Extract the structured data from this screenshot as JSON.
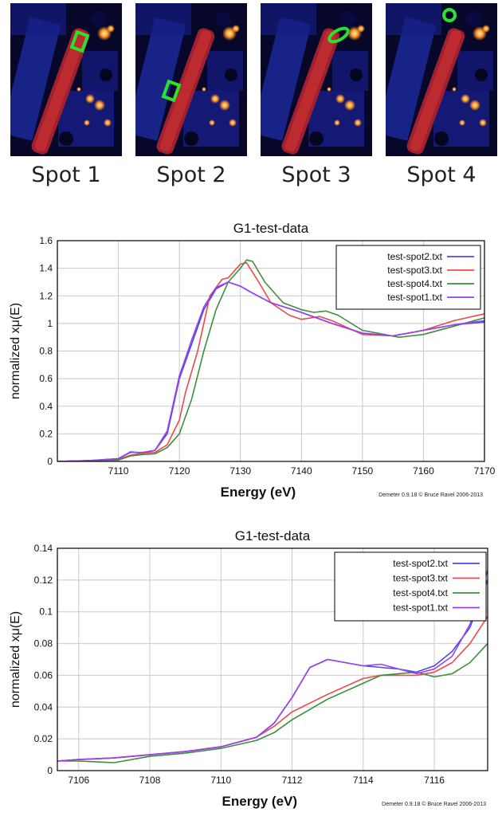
{
  "spots": [
    {
      "label": "Spot 1",
      "marker": "square"
    },
    {
      "label": "Spot 2",
      "marker": "square"
    },
    {
      "label": "Spot 3",
      "marker": "ellipse"
    },
    {
      "label": "Spot 4",
      "marker": "circle"
    }
  ],
  "colors": {
    "spot2": "#4a4af0",
    "spot3": "#f04848",
    "spot4": "#3a8f3a",
    "spot1": "#9a3ff0",
    "marker": "#2ee02e"
  },
  "chart_data": [
    {
      "type": "line",
      "title": "G1-test-data",
      "xlabel": "Energy    (eV)",
      "ylabel": "normalized xμ(E)",
      "credit": "Demeter 0.9.18 © Bruce  Ravel 2006-2013",
      "xlim": [
        7100,
        7170
      ],
      "ylim": [
        0,
        1.6
      ],
      "xticks": [
        7110,
        7120,
        7130,
        7140,
        7150,
        7160,
        7170
      ],
      "yticks": [
        0,
        0.2,
        0.4,
        0.6,
        0.8,
        1,
        1.2,
        1.4,
        1.6
      ],
      "ytick_labels": [
        "0",
        "0.2",
        "0.4",
        "0.6",
        "0.8",
        "1",
        "1.2",
        "1.4",
        "1.6"
      ],
      "legend_position": "top-right",
      "series": [
        {
          "name": "test-spot2.txt",
          "color": "#4a4af0",
          "points": [
            [
              7100,
              0
            ],
            [
              7105,
              0.005
            ],
            [
              7110,
              0.02
            ],
            [
              7112,
              0.07
            ],
            [
              7114,
              0.06
            ],
            [
              7116,
              0.08
            ],
            [
              7118,
              0.2
            ],
            [
              7119,
              0.4
            ],
            [
              7120,
              0.6
            ],
            [
              7122,
              0.85
            ],
            [
              7124,
              1.1
            ],
            [
              7126,
              1.25
            ],
            [
              7128,
              1.3
            ],
            [
              7130,
              1.27
            ],
            [
              7132,
              1.22
            ],
            [
              7135,
              1.15
            ],
            [
              7140,
              1.08
            ],
            [
              7145,
              1.0
            ],
            [
              7150,
              0.93
            ],
            [
              7155,
              0.91
            ],
            [
              7160,
              0.95
            ],
            [
              7165,
              0.99
            ],
            [
              7170,
              1.01
            ]
          ]
        },
        {
          "name": "test-spot3.txt",
          "color": "#f04848",
          "points": [
            [
              7100,
              0
            ],
            [
              7105,
              0.005
            ],
            [
              7110,
              0.015
            ],
            [
              7112,
              0.045
            ],
            [
              7114,
              0.06
            ],
            [
              7116,
              0.065
            ],
            [
              7118,
              0.12
            ],
            [
              7120,
              0.3
            ],
            [
              7121,
              0.5
            ],
            [
              7123,
              0.8
            ],
            [
              7125,
              1.2
            ],
            [
              7127,
              1.32
            ],
            [
              7128,
              1.33
            ],
            [
              7130,
              1.43
            ],
            [
              7131,
              1.44
            ],
            [
              7133,
              1.3
            ],
            [
              7135,
              1.15
            ],
            [
              7138,
              1.06
            ],
            [
              7140,
              1.03
            ],
            [
              7143,
              1.05
            ],
            [
              7145,
              1.02
            ],
            [
              7150,
              0.92
            ],
            [
              7155,
              0.91
            ],
            [
              7160,
              0.95
            ],
            [
              7165,
              1.02
            ],
            [
              7170,
              1.07
            ]
          ]
        },
        {
          "name": "test-spot4.txt",
          "color": "#3a8f3a",
          "points": [
            [
              7100,
              0
            ],
            [
              7105,
              0.005
            ],
            [
              7110,
              0.01
            ],
            [
              7112,
              0.04
            ],
            [
              7114,
              0.05
            ],
            [
              7116,
              0.055
            ],
            [
              7118,
              0.1
            ],
            [
              7120,
              0.2
            ],
            [
              7122,
              0.45
            ],
            [
              7124,
              0.8
            ],
            [
              7126,
              1.1
            ],
            [
              7128,
              1.3
            ],
            [
              7130,
              1.4
            ],
            [
              7131,
              1.46
            ],
            [
              7132,
              1.45
            ],
            [
              7134,
              1.3
            ],
            [
              7137,
              1.15
            ],
            [
              7140,
              1.1
            ],
            [
              7142,
              1.08
            ],
            [
              7144,
              1.09
            ],
            [
              7146,
              1.06
            ],
            [
              7150,
              0.95
            ],
            [
              7156,
              0.9
            ],
            [
              7160,
              0.92
            ],
            [
              7165,
              0.98
            ],
            [
              7170,
              1.04
            ]
          ]
        },
        {
          "name": "test-spot1.txt",
          "color": "#9a3ff0",
          "points": [
            [
              7100,
              0
            ],
            [
              7105,
              0.005
            ],
            [
              7110,
              0.02
            ],
            [
              7112,
              0.065
            ],
            [
              7114,
              0.065
            ],
            [
              7116,
              0.08
            ],
            [
              7118,
              0.22
            ],
            [
              7119,
              0.42
            ],
            [
              7120,
              0.62
            ],
            [
              7122,
              0.88
            ],
            [
              7124,
              1.12
            ],
            [
              7126,
              1.26
            ],
            [
              7128,
              1.3
            ],
            [
              7130,
              1.27
            ],
            [
              7132,
              1.22
            ],
            [
              7135,
              1.15
            ],
            [
              7140,
              1.08
            ],
            [
              7145,
              1.0
            ],
            [
              7150,
              0.93
            ],
            [
              7155,
              0.91
            ],
            [
              7160,
              0.95
            ],
            [
              7165,
              0.99
            ],
            [
              7170,
              1.02
            ]
          ]
        }
      ]
    },
    {
      "type": "line",
      "title": "G1-test-data",
      "xlabel": "Energy    (eV)",
      "ylabel": "normalized xμ(E)",
      "credit": "Demeter 0.9.18 © Bruce  Ravel 2006-2013",
      "xlim": [
        7105.4,
        7117.5
      ],
      "ylim": [
        0,
        0.14
      ],
      "xticks": [
        7106,
        7108,
        7110,
        7112,
        7114,
        7116
      ],
      "yticks": [
        0,
        0.02,
        0.04,
        0.06,
        0.08,
        0.1,
        0.12,
        0.14
      ],
      "ytick_labels": [
        "0",
        "0.02",
        "0.04",
        "0.06",
        "0.08",
        "0.1",
        "0.12",
        "0.14"
      ],
      "legend_position": "top-right",
      "series": [
        {
          "name": "test-spot2.txt",
          "color": "#4a4af0",
          "points": [
            [
              7105.4,
              0.006
            ],
            [
              7106,
              0.007
            ],
            [
              7107,
              0.008
            ],
            [
              7108,
              0.01
            ],
            [
              7109,
              0.012
            ],
            [
              7110,
              0.015
            ],
            [
              7111,
              0.021
            ],
            [
              7111.5,
              0.03
            ],
            [
              7112,
              0.046
            ],
            [
              7112.5,
              0.065
            ],
            [
              7113,
              0.07
            ],
            [
              7113.5,
              0.068
            ],
            [
              7114,
              0.066
            ],
            [
              7114.5,
              0.065
            ],
            [
              7115,
              0.064
            ],
            [
              7115.5,
              0.062
            ],
            [
              7116,
              0.066
            ],
            [
              7116.5,
              0.075
            ],
            [
              7117,
              0.09
            ],
            [
              7117.5,
              0.12
            ]
          ]
        },
        {
          "name": "test-spot3.txt",
          "color": "#f04848",
          "points": [
            [
              7105.4,
              0.006
            ],
            [
              7106,
              0.007
            ],
            [
              7107,
              0.008
            ],
            [
              7108,
              0.01
            ],
            [
              7109,
              0.012
            ],
            [
              7110,
              0.015
            ],
            [
              7111,
              0.021
            ],
            [
              7111.5,
              0.028
            ],
            [
              7112,
              0.037
            ],
            [
              7113,
              0.048
            ],
            [
              7114,
              0.058
            ],
            [
              7114.5,
              0.06
            ],
            [
              7115,
              0.06
            ],
            [
              7115.5,
              0.06
            ],
            [
              7116,
              0.062
            ],
            [
              7116.5,
              0.068
            ],
            [
              7117,
              0.08
            ],
            [
              7117.5,
              0.097
            ]
          ]
        },
        {
          "name": "test-spot4.txt",
          "color": "#3a8f3a",
          "points": [
            [
              7105.4,
              0.006
            ],
            [
              7106,
              0.006
            ],
            [
              7107,
              0.005
            ],
            [
              7108,
              0.009
            ],
            [
              7109,
              0.011
            ],
            [
              7110,
              0.014
            ],
            [
              7111,
              0.019
            ],
            [
              7111.5,
              0.024
            ],
            [
              7112,
              0.032
            ],
            [
              7113,
              0.045
            ],
            [
              7114,
              0.055
            ],
            [
              7114.5,
              0.06
            ],
            [
              7115,
              0.061
            ],
            [
              7115.5,
              0.062
            ],
            [
              7116,
              0.059
            ],
            [
              7116.5,
              0.061
            ],
            [
              7117,
              0.068
            ],
            [
              7117.5,
              0.08
            ]
          ]
        },
        {
          "name": "test-spot1.txt",
          "color": "#9a3ff0",
          "points": [
            [
              7105.4,
              0.006
            ],
            [
              7106,
              0.007
            ],
            [
              7107,
              0.008
            ],
            [
              7108,
              0.01
            ],
            [
              7109,
              0.012
            ],
            [
              7110,
              0.015
            ],
            [
              7111,
              0.021
            ],
            [
              7111.5,
              0.03
            ],
            [
              7112,
              0.046
            ],
            [
              7112.5,
              0.065
            ],
            [
              7113,
              0.07
            ],
            [
              7113.5,
              0.068
            ],
            [
              7114,
              0.066
            ],
            [
              7114.5,
              0.067
            ],
            [
              7115,
              0.064
            ],
            [
              7115.5,
              0.061
            ],
            [
              7116,
              0.064
            ],
            [
              7116.5,
              0.072
            ],
            [
              7117,
              0.092
            ],
            [
              7117.5,
              0.126
            ]
          ]
        }
      ]
    }
  ]
}
